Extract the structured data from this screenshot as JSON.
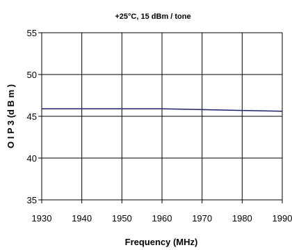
{
  "chart_data": {
    "type": "line",
    "title": "",
    "subtitle": "+25°C, 15 dBm / tone",
    "xlabel": "Frequency (MHz)",
    "ylabel": "O I P 3  (d B m )",
    "xlim": [
      1930,
      1990
    ],
    "ylim": [
      35,
      55
    ],
    "xticks": [
      1930,
      1940,
      1950,
      1960,
      1970,
      1980,
      1990
    ],
    "yticks": [
      35,
      40,
      45,
      50,
      55
    ],
    "grid": true,
    "series": [
      {
        "name": "",
        "color": "#1f1f6e",
        "x": [
          1930,
          1940,
          1950,
          1960,
          1970,
          1980,
          1990
        ],
        "y": [
          45.9,
          45.9,
          45.9,
          45.9,
          45.8,
          45.7,
          45.6
        ]
      }
    ]
  }
}
